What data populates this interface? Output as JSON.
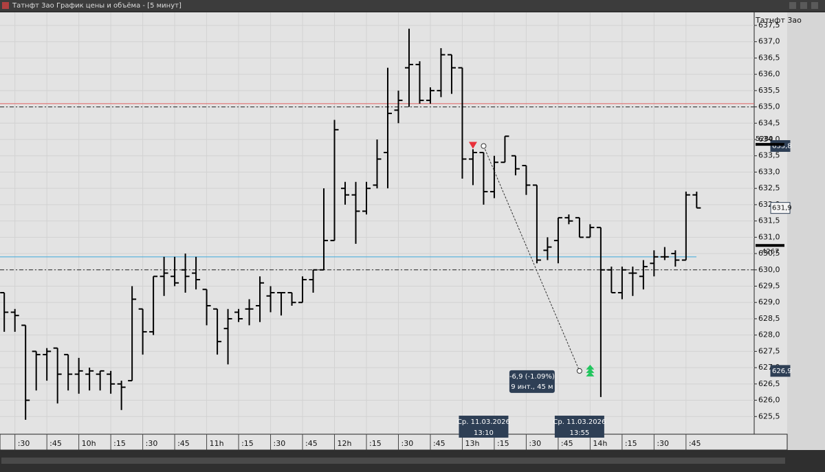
{
  "window": {
    "title": "Татнфт 3ао График цены и объёма - [5 минут]"
  },
  "chart_data": {
    "type": "ohlc",
    "x": [
      565,
      570,
      575,
      580,
      585,
      590,
      595,
      600,
      605,
      610,
      615,
      620,
      625,
      630,
      635,
      640,
      645,
      650,
      655,
      660,
      665,
      670,
      675,
      680,
      685,
      690,
      695,
      700,
      705,
      710,
      715,
      720,
      725,
      730,
      735,
      740,
      745,
      750,
      755,
      760,
      765,
      770,
      775,
      780,
      785,
      790,
      795,
      800,
      805,
      810,
      815,
      820,
      825,
      830,
      835,
      840,
      845,
      850,
      855,
      860,
      865,
      870,
      875,
      880,
      885,
      890
    ],
    "series": [
      {
        "name": "Татнфт 3ао",
        "color": "#000000",
        "open": [
          629.3,
          628.7,
          628.3,
          627.5,
          627.4,
          627.6,
          627.4,
          626.8,
          626.8,
          626.8,
          626.8,
          626.5,
          626.6,
          628.8,
          628.1,
          629.8,
          629.8,
          630.0,
          629.9,
          629.4,
          628.8,
          628.2,
          628.7,
          628.8,
          628.9,
          629.2,
          629.3,
          629.3,
          629.0,
          629.7,
          630.0,
          630.9,
          632.5,
          632.3,
          631.8,
          632.6,
          633.6,
          634.9,
          636.2,
          636.3,
          635.2,
          635.5,
          636.6,
          636.2,
          633.4,
          633.6,
          632.4,
          633.3,
          633.5,
          633.2,
          632.6,
          630.6,
          630.9,
          631.6,
          631.6,
          631.0,
          631.3,
          630.0,
          629.3,
          629.9,
          629.8,
          630.2,
          630.4,
          630.5,
          630.3,
          632.3
        ],
        "high": [
          629.3,
          628.8,
          628.3,
          627.5,
          627.6,
          627.6,
          627.4,
          627.3,
          627.0,
          626.9,
          626.9,
          626.6,
          629.5,
          628.8,
          629.8,
          630.4,
          630.4,
          630.5,
          630.4,
          629.4,
          628.8,
          628.8,
          628.8,
          629.1,
          629.8,
          629.5,
          629.3,
          629.3,
          629.8,
          630.0,
          632.5,
          634.6,
          632.7,
          632.7,
          632.7,
          634.0,
          636.2,
          635.5,
          637.4,
          636.4,
          635.6,
          636.8,
          636.6,
          636.2,
          633.7,
          633.6,
          633.5,
          634.1,
          633.5,
          633.2,
          632.6,
          631.0,
          631.6,
          631.7,
          631.6,
          631.4,
          631.3,
          630.1,
          630.1,
          630.1,
          630.3,
          630.6,
          630.7,
          630.6,
          632.4,
          632.4
        ],
        "low": [
          628.1,
          628.1,
          625.4,
          626.3,
          626.6,
          625.9,
          626.3,
          626.2,
          626.3,
          626.3,
          626.2,
          625.7,
          626.6,
          627.4,
          628.0,
          629.2,
          629.5,
          629.3,
          629.4,
          628.3,
          627.4,
          627.1,
          628.4,
          628.3,
          628.4,
          628.7,
          628.6,
          628.9,
          629.0,
          629.3,
          630.0,
          630.9,
          632.0,
          630.8,
          631.7,
          632.5,
          632.5,
          634.5,
          635.0,
          635.1,
          635.1,
          635.3,
          635.4,
          632.8,
          632.6,
          632.0,
          632.2,
          633.3,
          632.9,
          632.3,
          630.2,
          630.3,
          630.2,
          631.4,
          631.0,
          631.0,
          626.1,
          629.3,
          629.1,
          629.2,
          629.4,
          629.8,
          630.3,
          630.1,
          630.3,
          631.9
        ],
        "close": [
          628.7,
          628.6,
          626.0,
          627.4,
          627.5,
          626.8,
          626.8,
          626.9,
          626.9,
          626.9,
          626.5,
          626.4,
          629.1,
          628.1,
          629.8,
          629.9,
          629.6,
          629.8,
          629.7,
          628.9,
          627.8,
          628.5,
          628.5,
          628.8,
          629.6,
          629.3,
          629.3,
          629.0,
          629.7,
          630.0,
          630.9,
          634.3,
          632.3,
          631.8,
          632.5,
          633.4,
          634.8,
          635.2,
          636.3,
          635.2,
          635.5,
          636.6,
          636.2,
          633.4,
          633.6,
          632.4,
          633.3,
          634.1,
          633.1,
          632.6,
          630.3,
          630.7,
          631.6,
          631.5,
          631.0,
          631.3,
          630.0,
          629.3,
          630.0,
          629.9,
          630.1,
          630.4,
          630.4,
          630.3,
          632.3,
          631.9
        ]
      }
    ],
    "xlim": [
      563,
      917
    ],
    "ylim": [
      625.0,
      637.9
    ],
    "xticks": [
      {
        "value": 570,
        "label": ":30"
      },
      {
        "value": 585,
        "label": ":45"
      },
      {
        "value": 600,
        "label": "10h"
      },
      {
        "value": 615,
        "label": ":15"
      },
      {
        "value": 630,
        "label": ":30"
      },
      {
        "value": 645,
        "label": ":45"
      },
      {
        "value": 660,
        "label": "11h"
      },
      {
        "value": 675,
        "label": ":15"
      },
      {
        "value": 690,
        "label": ":30"
      },
      {
        "value": 705,
        "label": ":45"
      },
      {
        "value": 720,
        "label": "12h"
      },
      {
        "value": 735,
        "label": ":15"
      },
      {
        "value": 750,
        "label": ":30"
      },
      {
        "value": 765,
        "label": ":45"
      },
      {
        "value": 780,
        "label": "13h"
      },
      {
        "value": 795,
        "label": ":15"
      },
      {
        "value": 810,
        "label": ":30"
      },
      {
        "value": 825,
        "label": ":45"
      },
      {
        "value": 840,
        "label": "14h"
      },
      {
        "value": 855,
        "label": ":15"
      },
      {
        "value": 870,
        "label": ":30"
      },
      {
        "value": 885,
        "label": ":45"
      }
    ],
    "yticks": [
      {
        "value": 625.5,
        "label": "625,5"
      },
      {
        "value": 626,
        "label": "626,0"
      },
      {
        "value": 626.5,
        "label": "626,5"
      },
      {
        "value": 627,
        "label": "627,0"
      },
      {
        "value": 627.5,
        "label": "627,5"
      },
      {
        "value": 628,
        "label": "628,0"
      },
      {
        "value": 628.5,
        "label": "628,5"
      },
      {
        "value": 629,
        "label": "629,0"
      },
      {
        "value": 629.5,
        "label": "629,5"
      },
      {
        "value": 630,
        "label": "630,0"
      },
      {
        "value": 630.5,
        "label": "630,5"
      },
      {
        "value": 631,
        "label": "631,0"
      },
      {
        "value": 631.5,
        "label": "631,5"
      },
      {
        "value": 632,
        "label": "632,0"
      },
      {
        "value": 632.5,
        "label": "632,5"
      },
      {
        "value": 633,
        "label": "633,0"
      },
      {
        "value": 633.5,
        "label": "633,5"
      },
      {
        "value": 634,
        "label": "634,0"
      },
      {
        "value": 634.5,
        "label": "634,5"
      },
      {
        "value": 635,
        "label": "635,0"
      },
      {
        "value": 635.5,
        "label": "635,5"
      },
      {
        "value": 636,
        "label": "636,0"
      },
      {
        "value": 636.5,
        "label": "636,5"
      },
      {
        "value": 637,
        "label": "637,0"
      },
      {
        "value": 637.5,
        "label": "637,5"
      }
    ],
    "grid": true,
    "hlines": [
      {
        "value": 635.1,
        "color": "#e06060",
        "style": "solid"
      },
      {
        "value": 635.0,
        "color": "#222222",
        "style": "dashdot"
      },
      {
        "value": 630.4,
        "color": "#3aa8dc",
        "style": "solid"
      },
      {
        "value": 630.0,
        "color": "#222222",
        "style": "dashdot"
      }
    ],
    "price_labels": [
      {
        "value": 633.8,
        "label": "633,8",
        "dark": true
      },
      {
        "value": 631.9,
        "label": "631,9",
        "dark": false
      },
      {
        "value": 626.9,
        "label": "626,9",
        "dark": true
      }
    ],
    "volume_labels": [
      {
        "value": 5280,
        "level": 633.85
      },
      {
        "value": 4267,
        "level": 630.75
      }
    ],
    "signals": [
      {
        "kind": "sell",
        "x": 785,
        "y": 633.8,
        "color": "#e8303a"
      },
      {
        "kind": "buy",
        "x": 840,
        "y": 626.9,
        "color": "#22c55e"
      }
    ],
    "measurement": {
      "x": [
        790,
        835
      ],
      "y": [
        633.8,
        626.9
      ],
      "label": "-6,9 (-1.09%)",
      "sublabel": "9 инт., 45 м"
    },
    "crosshair_labels": [
      {
        "x": 790,
        "date": "Ср. 11.03.2026",
        "time": "13:10"
      },
      {
        "x": 835,
        "date": "Ср. 11.03.2026",
        "time": "13:55"
      }
    ]
  }
}
